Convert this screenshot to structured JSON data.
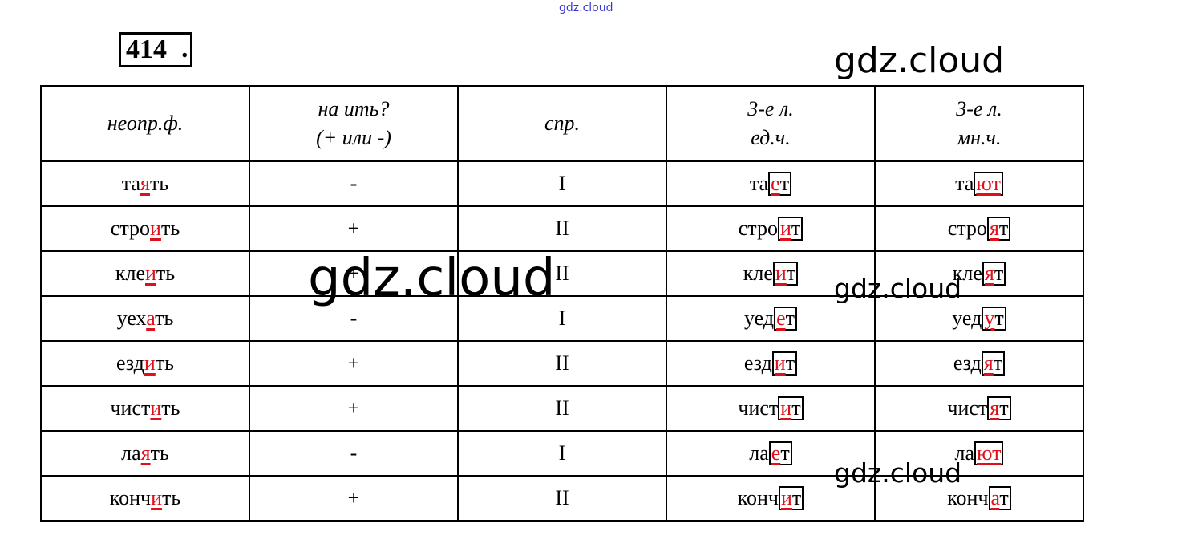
{
  "watermark": "gdz.cloud",
  "exercise_number": "414",
  "headers": [
    [
      "неопр.ф."
    ],
    [
      "на ить?",
      "(+ или -)"
    ],
    [
      "спр."
    ],
    [
      "3-е л.",
      "ед.ч."
    ],
    [
      "3-е л.",
      "мн.ч."
    ]
  ],
  "rows": [
    {
      "inf": [
        "та",
        "я",
        "ть"
      ],
      "it": "-",
      "conj": "I",
      "sg": [
        "та",
        "е",
        "т"
      ],
      "pl": [
        "та",
        "ют",
        ""
      ]
    },
    {
      "inf": [
        "стро",
        "и",
        "ть"
      ],
      "it": "+",
      "conj": "II",
      "sg": [
        "стро",
        "и",
        "т"
      ],
      "pl": [
        "стро",
        "я",
        "т"
      ]
    },
    {
      "inf": [
        "кле",
        "и",
        "ть"
      ],
      "it": "+",
      "conj": "II",
      "sg": [
        "кле",
        "и",
        "т"
      ],
      "pl": [
        "кле",
        "я",
        "т"
      ]
    },
    {
      "inf": [
        "уех",
        "а",
        "ть"
      ],
      "it": "-",
      "conj": "I",
      "sg": [
        "уед",
        "е",
        "т"
      ],
      "pl": [
        "уед",
        "у",
        "т"
      ]
    },
    {
      "inf": [
        "езд",
        "и",
        "ть"
      ],
      "it": "+",
      "conj": "II",
      "sg": [
        "езд",
        "и",
        "т"
      ],
      "pl": [
        "езд",
        "я",
        "т"
      ]
    },
    {
      "inf": [
        "чист",
        "и",
        "ть"
      ],
      "it": "+",
      "conj": "II",
      "sg": [
        "чист",
        "и",
        "т"
      ],
      "pl": [
        "чист",
        "я",
        "т"
      ]
    },
    {
      "inf": [
        "ла",
        "я",
        "ть"
      ],
      "it": "-",
      "conj": "I",
      "sg": [
        "ла",
        "е",
        "т"
      ],
      "pl": [
        "ла",
        "ют",
        ""
      ]
    },
    {
      "inf": [
        "конч",
        "и",
        "ть"
      ],
      "it": "+",
      "conj": "II",
      "sg": [
        "конч",
        "и",
        "т"
      ],
      "pl": [
        "конч",
        "а",
        "т"
      ]
    }
  ],
  "colors": {
    "highlight": "#e0101a",
    "watermark_top": "#3a3ad0"
  }
}
